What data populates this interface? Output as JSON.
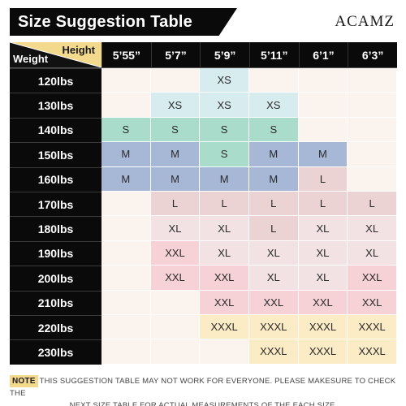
{
  "header": {
    "title": "Size Suggestion Table",
    "brand": "ACAMZ"
  },
  "table": {
    "corner": {
      "height_label": "Height",
      "weight_label": "Weight"
    },
    "heights": [
      "5’55”",
      "5’7”",
      "5’9”",
      "5’11”",
      "6’1”",
      "6’3”"
    ],
    "rows": [
      {
        "weight": "120lbs",
        "cells": [
          "",
          "",
          "XS",
          "",
          "",
          ""
        ]
      },
      {
        "weight": "130lbs",
        "cells": [
          "",
          "XS",
          "XS",
          "XS",
          "",
          ""
        ]
      },
      {
        "weight": "140lbs",
        "cells": [
          "S",
          "S",
          "S",
          "S",
          "",
          ""
        ]
      },
      {
        "weight": "150lbs",
        "cells": [
          "M",
          "M",
          "S",
          "M",
          "M",
          ""
        ]
      },
      {
        "weight": "160lbs",
        "cells": [
          "M",
          "M",
          "M",
          "M",
          "L",
          ""
        ]
      },
      {
        "weight": "170lbs",
        "cells": [
          "",
          "L",
          "L",
          "L",
          "L",
          "L"
        ]
      },
      {
        "weight": "180lbs",
        "cells": [
          "",
          "XL",
          "XL",
          "L",
          "XL",
          "XL"
        ]
      },
      {
        "weight": "190lbs",
        "cells": [
          "",
          "XXL",
          "XL",
          "XL",
          "XL",
          "XL"
        ]
      },
      {
        "weight": "200lbs",
        "cells": [
          "",
          "XXL",
          "XXL",
          "XL",
          "XL",
          "XXL"
        ]
      },
      {
        "weight": "210lbs",
        "cells": [
          "",
          "",
          "XXL",
          "XXL",
          "XXL",
          "XXL"
        ]
      },
      {
        "weight": "220lbs",
        "cells": [
          "",
          "",
          "XXXL",
          "XXXL",
          "XXXL",
          "XXXL"
        ]
      },
      {
        "weight": "230lbs",
        "cells": [
          "",
          "",
          "",
          "XXXL",
          "XXXL",
          "XXXL"
        ]
      }
    ]
  },
  "size_colors": {
    "empty": "#fbf4ee",
    "XS": "#d6ecef",
    "S": "#a9dccb",
    "M": "#a6b8d6",
    "L": "#ecd3d3",
    "XL": "#f3e2e3",
    "XXL": "#f6d2d6",
    "XXXL": "#fcecc6"
  },
  "note": {
    "tag": "NOTE",
    "line1": "THIS SUGGESTION TABLE MAY NOT WORK FOR EVERYONE. PLEASE MAKESURE TO CHECK THE",
    "line2": "NEXT SIZE TABLE FOR ACTUAL MEASUREMENTS OF THE EACH SIZE."
  }
}
